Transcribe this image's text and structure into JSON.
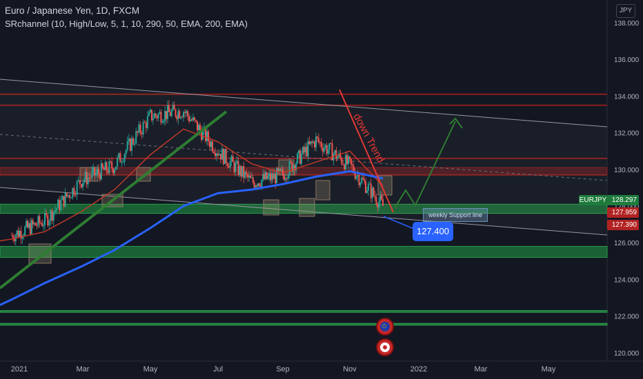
{
  "legend": {
    "symbol_line": "Euro / Japanese Yen, 1D, FXCM",
    "indicator_line": "SRchannel (10, High/Low, 5, 1, 10, 290, 50, EMA, 200, EMA)"
  },
  "currency_button": "JPY",
  "price_tags": {
    "symbol": "EURJPY",
    "last": "128.297",
    "tag2": "127.959",
    "tag3": "127.390"
  },
  "annotations": {
    "trend_text": "down Trend",
    "note": "127.400",
    "weekly_label": "weekly Support line"
  },
  "colors": {
    "background": "#131722",
    "ema_slow": "#2962ff",
    "ema_fast": "#c0392b",
    "support_zone": "#1e7b3c",
    "resistance_zone": "#8b1e1e",
    "trendline_up": "#2e7d32",
    "trendline_down": "#e53935",
    "candle_up": "#26a69a",
    "candle_down": "#ef5350"
  },
  "chart_data": {
    "type": "line",
    "title": "Euro / Japanese Yen, 1D, FXCM",
    "xlabel": "",
    "ylabel": "",
    "x_ticks": [
      "2021",
      "Mar",
      "May",
      "Jul",
      "Sep",
      "Nov",
      "2022",
      "Mar",
      "May"
    ],
    "y_ticks": [
      "138.000",
      "136.000",
      "134.000",
      "132.000",
      "130.000",
      "128.000",
      "126.000",
      "124.000",
      "122.000",
      "120.000"
    ],
    "ylim": [
      119.7,
      138.7
    ],
    "grid": false,
    "x": [
      "2021-01",
      "2021-02",
      "2021-03",
      "2021-04",
      "2021-05",
      "2021-06",
      "2021-07",
      "2021-08",
      "2021-09",
      "2021-10",
      "2021-11",
      "2021-12"
    ],
    "series": [
      {
        "values": [
          126.4,
          127.2,
          129.4,
          130.2,
          132.9,
          133.2,
          131.0,
          129.3,
          129.7,
          131.6,
          130.2,
          128.0
        ]
      },
      {
        "values": [
          126.2,
          126.6,
          127.7,
          128.9,
          130.8,
          132.2,
          131.5,
          130.3,
          129.8,
          130.4,
          131.0,
          129.1
        ]
      },
      {
        "values": [
          122.9,
          123.8,
          124.7,
          125.6,
          126.8,
          128.0,
          128.7,
          128.9,
          129.2,
          129.6,
          129.9,
          129.5
        ]
      }
    ],
    "resistance_levels": [
      134.1,
      133.5,
      130.6,
      130.0,
      129.7
    ],
    "support_zones": [
      [
        127.6,
        128.1
      ],
      [
        125.2,
        125.8
      ],
      [
        122.2,
        122.3
      ],
      [
        121.5,
        121.6
      ]
    ],
    "last_price": 128.297
  }
}
